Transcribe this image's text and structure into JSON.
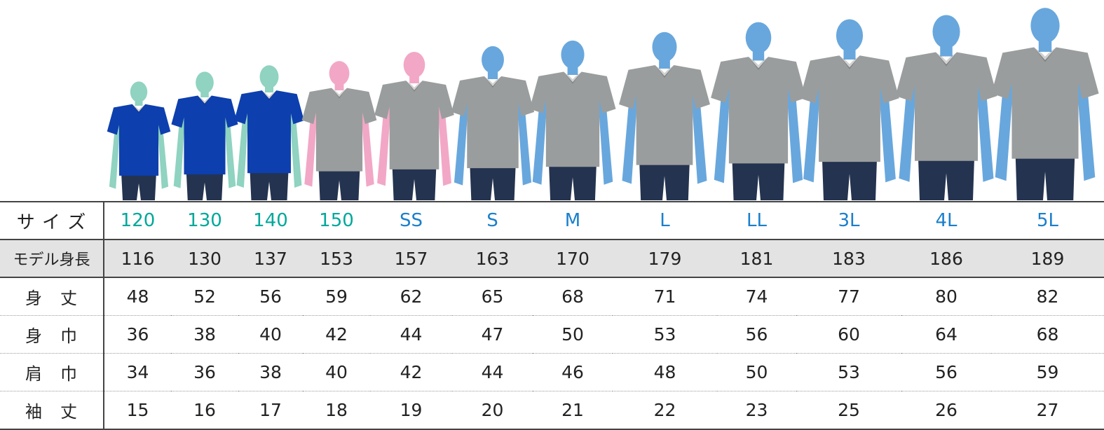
{
  "colors": {
    "kid_skin": "#8fd3c0",
    "woman_skin": "#f2a7c6",
    "man_skin": "#68a7dd",
    "shirt_blue": "#0d3fae",
    "shirt_gray": "#9a9d9d",
    "jeans": "#24334f",
    "kid_label": "#00a89b",
    "adult_label": "#1a7fcc",
    "height_row_bg": "#e3e3e3"
  },
  "models": [
    {
      "size": "120",
      "group": "kid",
      "skin": "kid_skin",
      "shirt": "shirt_blue"
    },
    {
      "size": "130",
      "group": "kid",
      "skin": "kid_skin",
      "shirt": "shirt_blue"
    },
    {
      "size": "140",
      "group": "kid",
      "skin": "kid_skin",
      "shirt": "shirt_blue"
    },
    {
      "size": "150",
      "group": "kid",
      "skin": "woman_skin",
      "shirt": "shirt_gray"
    },
    {
      "size": "SS",
      "group": "adult",
      "skin": "woman_skin",
      "shirt": "shirt_gray"
    },
    {
      "size": "S",
      "group": "adult",
      "skin": "man_skin",
      "shirt": "shirt_gray"
    },
    {
      "size": "M",
      "group": "adult",
      "skin": "man_skin",
      "shirt": "shirt_gray"
    },
    {
      "size": "L",
      "group": "adult",
      "skin": "man_skin",
      "shirt": "shirt_gray"
    },
    {
      "size": "LL",
      "group": "adult",
      "skin": "man_skin",
      "shirt": "shirt_gray"
    },
    {
      "size": "3L",
      "group": "adult",
      "skin": "man_skin",
      "shirt": "shirt_gray"
    },
    {
      "size": "4L",
      "group": "adult",
      "skin": "man_skin",
      "shirt": "shirt_gray"
    },
    {
      "size": "5L",
      "group": "adult",
      "skin": "man_skin",
      "shirt": "shirt_gray"
    }
  ],
  "table": {
    "rows": [
      {
        "key": "size",
        "label": "サ イ ズ",
        "values": [
          "120",
          "130",
          "140",
          "150",
          "SS",
          "S",
          "M",
          "L",
          "LL",
          "3L",
          "4L",
          "5L"
        ]
      },
      {
        "key": "height",
        "label": "モデル身長",
        "values": [
          "116",
          "130",
          "137",
          "153",
          "157",
          "163",
          "170",
          "179",
          "181",
          "183",
          "186",
          "189"
        ]
      },
      {
        "key": "length",
        "label": "身　丈",
        "values": [
          "48",
          "52",
          "56",
          "59",
          "62",
          "65",
          "68",
          "71",
          "74",
          "77",
          "80",
          "82"
        ]
      },
      {
        "key": "width",
        "label": "身　巾",
        "values": [
          "36",
          "38",
          "40",
          "42",
          "44",
          "47",
          "50",
          "53",
          "56",
          "60",
          "64",
          "68"
        ]
      },
      {
        "key": "shoulder",
        "label": "肩　巾",
        "values": [
          "34",
          "36",
          "38",
          "40",
          "42",
          "44",
          "46",
          "48",
          "50",
          "53",
          "56",
          "59"
        ]
      },
      {
        "key": "sleeve",
        "label": "袖　丈",
        "values": [
          "15",
          "16",
          "17",
          "18",
          "19",
          "20",
          "21",
          "22",
          "23",
          "25",
          "26",
          "27"
        ]
      }
    ]
  }
}
